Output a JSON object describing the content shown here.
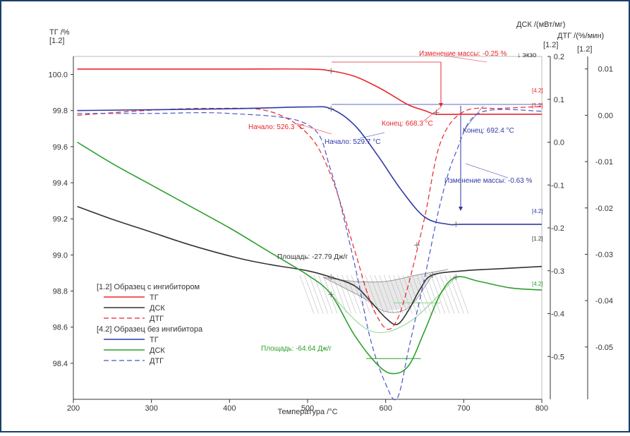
{
  "chart_data": {
    "type": "line",
    "axes": {
      "x": {
        "label": "Температура /°C",
        "range": [
          200,
          800
        ],
        "ticks": [
          200,
          300,
          400,
          500,
          600,
          700,
          800
        ]
      },
      "tg": {
        "title": "ТГ /%",
        "sub": "[1.2]",
        "range": [
          98.2,
          100.1
        ],
        "ticks": [
          100.0,
          99.8,
          99.6,
          99.4,
          99.2,
          99.0,
          98.8,
          98.6,
          98.4
        ],
        "tick_labels": [
          "100.0",
          "99.8",
          "99.6",
          "99.4",
          "99.2",
          "99.0",
          "98.8",
          "98.6",
          "98.4"
        ]
      },
      "dsc": {
        "title": "ДСК /(мВт/мг)",
        "sub": "[1.2]",
        "exo": "↓ экзо",
        "range": [
          -0.6,
          0.2
        ],
        "ticks": [
          0.2,
          0.1,
          0.0,
          -0.1,
          -0.2,
          -0.3,
          -0.4,
          -0.5
        ],
        "tick_labels": [
          "0.2",
          "0.1",
          "0.0",
          "-0.1",
          "-0.2",
          "-0.3",
          "-0.4",
          "-0.5"
        ]
      },
      "dtg": {
        "title": "ДТГ /(%/мин)",
        "sub": "[1.2]",
        "range": [
          -0.0613,
          0.0127
        ],
        "ticks": [
          0.01,
          0.0,
          -0.01,
          -0.02,
          -0.03,
          -0.04,
          -0.05
        ],
        "tick_labels": [
          "0.01",
          "0.00",
          "-0.01",
          "-0.02",
          "-0.03",
          "-0.04",
          "-0.05"
        ]
      }
    },
    "series": [
      {
        "key": "tg12",
        "axis": "tg",
        "color": "#e8262b",
        "dash": false,
        "width": 1.6,
        "x": [
          205,
          300,
          400,
          500,
          530,
          560,
          590,
          610,
          630,
          650,
          665,
          700,
          800
        ],
        "y": [
          100.03,
          100.03,
          100.03,
          100.03,
          100.02,
          99.99,
          99.93,
          99.88,
          99.83,
          99.8,
          99.78,
          99.78,
          99.78
        ]
      },
      {
        "key": "dsc12",
        "axis": "dsc",
        "color": "#333333",
        "dash": false,
        "width": 1.6,
        "x": [
          205,
          250,
          300,
          350,
          410,
          450,
          500,
          530,
          560,
          580,
          600,
          615,
          630,
          645,
          660,
          700,
          750,
          800
        ],
        "y": [
          -0.15,
          -0.18,
          -0.21,
          -0.24,
          -0.27,
          -0.285,
          -0.3,
          -0.315,
          -0.335,
          -0.37,
          -0.41,
          -0.425,
          -0.39,
          -0.34,
          -0.31,
          -0.3,
          -0.295,
          -0.29
        ]
      },
      {
        "key": "dtg12",
        "axis": "dtg",
        "color": "#e8262b",
        "dash": true,
        "width": 1.2,
        "x": [
          205,
          300,
          380,
          450,
          500,
          530,
          560,
          580,
          600,
          615,
          630,
          650,
          670,
          700,
          750,
          800
        ],
        "y": [
          0.0,
          0.0011,
          0.0015,
          0.0009,
          -0.004,
          -0.013,
          -0.029,
          -0.04,
          -0.046,
          -0.044,
          -0.036,
          -0.022,
          -0.006,
          0.0008,
          0.0015,
          0.0019
        ]
      },
      {
        "key": "tg42",
        "axis": "tg",
        "color": "#2e3aa6",
        "dash": false,
        "width": 1.6,
        "x": [
          205,
          400,
          500,
          530,
          560,
          590,
          620,
          650,
          680,
          700,
          800
        ],
        "y": [
          99.8,
          99.81,
          99.82,
          99.81,
          99.72,
          99.55,
          99.36,
          99.21,
          99.17,
          99.17,
          99.17
        ]
      },
      {
        "key": "dsc42",
        "axis": "dsc",
        "color": "#2ca02c",
        "dash": false,
        "width": 1.6,
        "x": [
          205,
          250,
          300,
          350,
          400,
          450,
          500,
          530,
          560,
          590,
          610,
          630,
          650,
          670,
          690,
          720,
          760,
          800
        ],
        "y": [
          0.0,
          -0.05,
          -0.1,
          -0.15,
          -0.2,
          -0.255,
          -0.31,
          -0.355,
          -0.45,
          -0.52,
          -0.54,
          -0.52,
          -0.44,
          -0.355,
          -0.315,
          -0.325,
          -0.34,
          -0.345
        ]
      },
      {
        "key": "dtg42",
        "axis": "dtg",
        "color": "#4a56c7",
        "dash": true,
        "width": 1.2,
        "x": [
          205,
          300,
          400,
          500,
          530,
          560,
          580,
          600,
          615,
          630,
          650,
          670,
          690,
          720,
          800
        ],
        "y": [
          0.0004,
          0.0004,
          0.0004,
          -0.002,
          -0.012,
          -0.032,
          -0.048,
          -0.058,
          -0.061,
          -0.05,
          -0.035,
          -0.019,
          -0.008,
          0.0005,
          0.0009
        ]
      }
    ],
    "guides": {
      "dsc12_top": {
        "x": [
          520,
          560,
          600,
          640,
          680
        ],
        "y": [
          -0.315,
          -0.325,
          -0.325,
          -0.31,
          -0.297
        ]
      },
      "dsc12_bottom": {
        "x": [
          520,
          570,
          600,
          630,
          660
        ],
        "y": [
          -0.315,
          -0.362,
          -0.395,
          -0.385,
          -0.31
        ]
      },
      "dsc42_top": {
        "x": [
          530,
          580,
          630,
          690
        ],
        "y": [
          -0.355,
          -0.44,
          -0.42,
          -0.315
        ]
      },
      "dsc42_flat": {
        "x": [
          575,
          645
        ],
        "y": [
          -0.505,
          -0.505
        ]
      },
      "dsc42_flat2": {
        "x": [
          610,
          670
        ],
        "y": [
          -0.375,
          -0.375
        ]
      }
    },
    "markers": [
      {
        "axis": "tg",
        "x": 530,
        "y": 100.02
      },
      {
        "axis": "tg",
        "x": 665,
        "y": 99.79
      },
      {
        "axis": "tg",
        "x": 530,
        "y": 99.81
      },
      {
        "axis": "tg",
        "x": 690,
        "y": 99.17
      },
      {
        "axis": "dsc",
        "x": 530,
        "y": -0.315
      },
      {
        "axis": "dsc",
        "x": 660,
        "y": -0.31
      },
      {
        "axis": "dsc",
        "x": 530,
        "y": -0.355
      },
      {
        "axis": "dsc",
        "x": 690,
        "y": -0.315
      },
      {
        "axis": "dsc",
        "x": 640,
        "y": -0.24
      }
    ],
    "annotations": {
      "mass_red": "Изменение массы: -0.25 %",
      "onset_red": "Начало: 526.3 °C",
      "end_red": "Конец: 668.3 °C",
      "onset_blue": "Начало: 529.7 °C",
      "end_blue": "Конец: 692.4 °C",
      "mass_blue": "Изменение массы: -0.63 %",
      "area_black": "Площадь: -27.79 Дж/г",
      "area_green": "Площадь: -64.64 Дж/г",
      "tag12_dtg": "[1.2]",
      "tag42_dtg": "[4.2]",
      "tag42_tg": "[4.2]",
      "tag12_dsc": "[1.2]",
      "tag42_dsc": "[4.2]"
    },
    "legend": {
      "placement": "bottom-left",
      "groups": [
        {
          "title": "[1.2] Образец с ингибитором",
          "items": [
            {
              "label": "ТГ",
              "series": "tg12"
            },
            {
              "label": "ДСК",
              "series": "dsc12"
            },
            {
              "label": "ДТГ",
              "series": "dtg12"
            }
          ]
        },
        {
          "title": "[4.2] Образец без ингибитора",
          "items": [
            {
              "label": "ТГ",
              "series": "tg42"
            },
            {
              "label": "ДСК",
              "series": "dsc42"
            },
            {
              "label": "ДТГ",
              "series": "dtg42"
            }
          ]
        }
      ]
    }
  }
}
